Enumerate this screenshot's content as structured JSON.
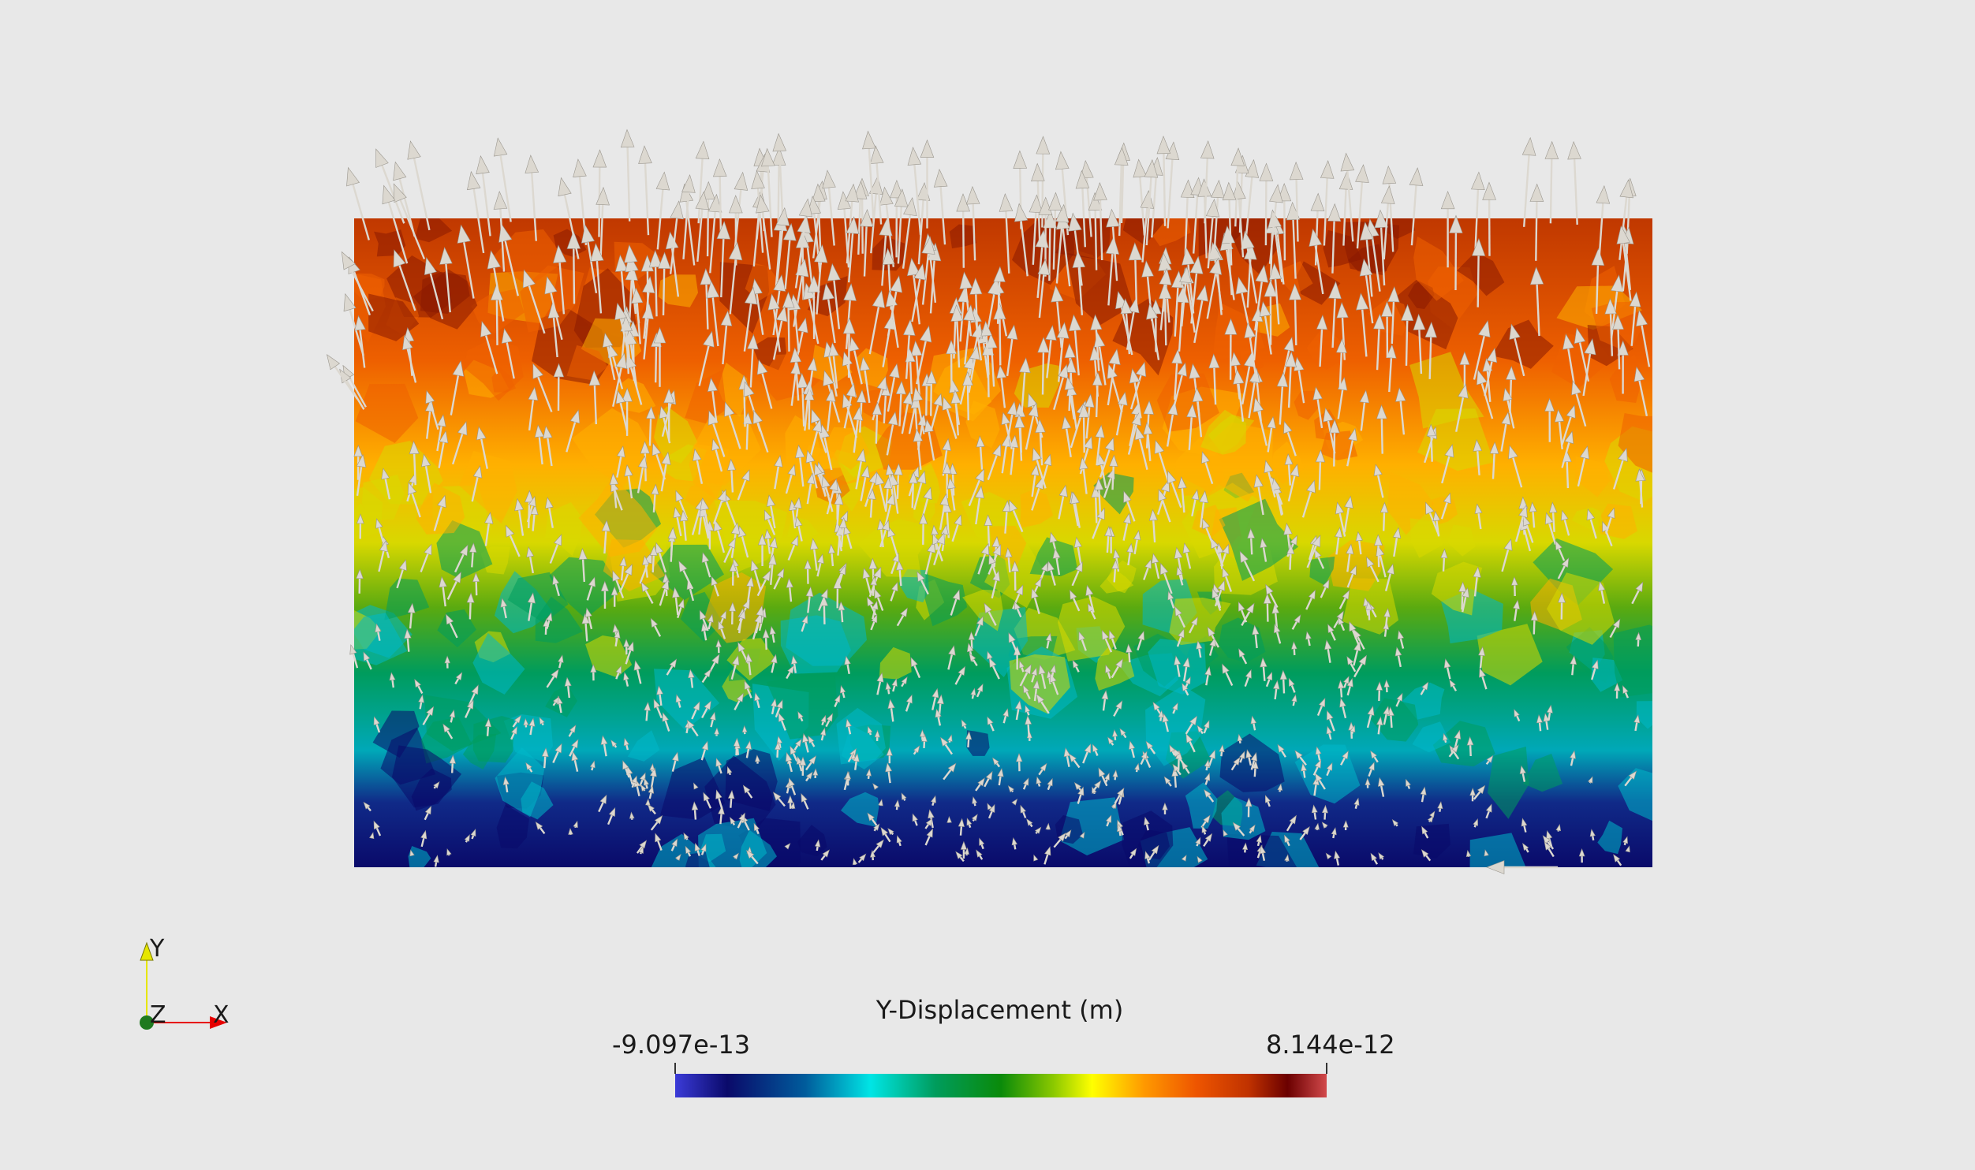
{
  "colorbar": {
    "title": "Y-Displacement (m)",
    "min_label": "-9.097e-13",
    "max_label": "8.144e-12",
    "min_value": -9.097e-13,
    "max_value": 8.144e-12,
    "colormap": [
      "#3b3bd8",
      "#0a0a6a",
      "#005c9c",
      "#00e5e5",
      "#009c5c",
      "#0a8a0a",
      "#8ac800",
      "#ffff00",
      "#ff9900",
      "#ee5500",
      "#c03200",
      "#6b0000",
      "#d2494b"
    ]
  },
  "orientation_axes": {
    "y_label": "Y",
    "z_label": "Z",
    "x_label": "X",
    "y_color": "#e6e600",
    "x_color": "#e60000",
    "z_color": "#1f7a1f"
  },
  "background_color": "#e8e8e8",
  "arrow_color": "#dcd8d0"
}
